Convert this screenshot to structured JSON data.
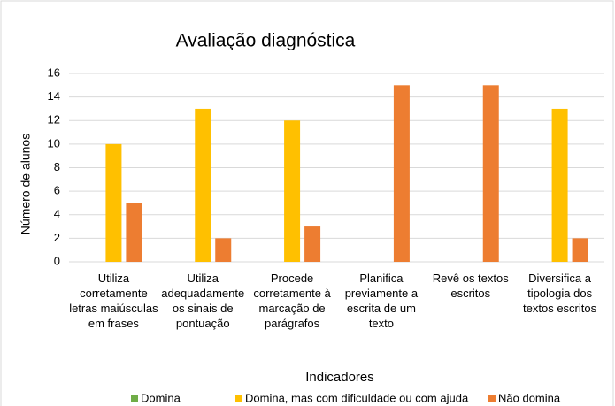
{
  "chart_data": {
    "type": "bar",
    "title": "Avaliação diagnóstica",
    "x_label": "Indicadores",
    "y_label": "Número de alunos",
    "categories": [
      "Utiliza corretamente letras maiúsculas em frases",
      "Utiliza adequadamente os sinais de pontuação",
      "Procede corretamente à marcação de parágrafos",
      "Planifica previamente a escrita de um texto",
      "Revê os textos escritos",
      "Diversifica a tipologia dos textos escritos"
    ],
    "series": [
      {
        "name": "Domina",
        "color": "#70ad47",
        "values": [
          0,
          0,
          0,
          0,
          0,
          0
        ]
      },
      {
        "name": "Domina, mas com dificuldade ou com ajuda",
        "color": "#ffc000",
        "values": [
          10,
          13,
          12,
          0,
          0,
          13
        ]
      },
      {
        "name": "Não domina",
        "color": "#ed7d31",
        "values": [
          5,
          2,
          3,
          15,
          15,
          2
        ]
      }
    ],
    "ylim": [
      0,
      16
    ],
    "yticks": [
      0,
      2,
      4,
      6,
      8,
      10,
      12,
      14,
      16
    ],
    "grid": true,
    "legend": "bottom"
  }
}
